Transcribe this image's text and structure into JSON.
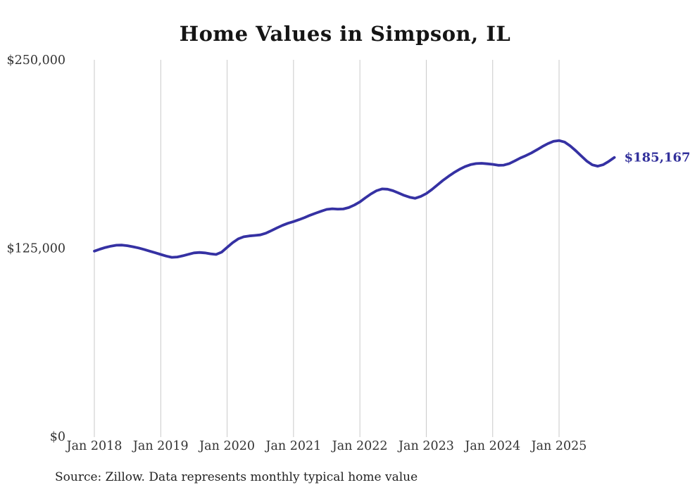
{
  "header": {
    "title": "Home Values in Simpson, IL"
  },
  "footer": {
    "source_note": "Source: Zillow. Data represents monthly typical home value"
  },
  "colors": {
    "line": "#3531a3",
    "grid": "#c9c9c9",
    "axis_text": "#333333",
    "title_text": "#151515",
    "end_label_text": "#32309b",
    "source_text": "#222222",
    "background": "#ffffff"
  },
  "chart_data": {
    "type": "line",
    "title": "Home Values in Simpson, IL",
    "xlabel": "",
    "ylabel": "",
    "ylim": [
      0,
      250000
    ],
    "grid": "vertical-only",
    "legend": "none",
    "y_ticks": [
      {
        "value": 0,
        "label": "$0"
      },
      {
        "value": 125000,
        "label": "$125,000"
      },
      {
        "value": 250000,
        "label": "$250,000"
      }
    ],
    "x_tick_labels": [
      "Jan 2018",
      "Jan 2019",
      "Jan 2020",
      "Jan 2021",
      "Jan 2022",
      "Jan 2023",
      "Jan 2024",
      "Jan 2025"
    ],
    "end_label": "$185,167",
    "series": [
      {
        "name": "Monthly typical home value",
        "frequency": "monthly",
        "x_start": "Jan 2018",
        "x_end": "Nov 2025",
        "values": [
          123000,
          124300,
          125400,
          126300,
          126900,
          127000,
          126600,
          125900,
          125100,
          124100,
          123000,
          121900,
          120800,
          119700,
          118900,
          119100,
          119900,
          120900,
          121800,
          122100,
          121800,
          121200,
          120800,
          122300,
          125500,
          128600,
          131100,
          132500,
          133100,
          133400,
          133800,
          134900,
          136600,
          138400,
          140100,
          141500,
          142600,
          143900,
          145300,
          146800,
          148200,
          149500,
          150700,
          151100,
          150900,
          151000,
          151900,
          153600,
          155700,
          158400,
          161000,
          163100,
          164300,
          164100,
          163100,
          161600,
          160000,
          158800,
          158100,
          159300,
          161200,
          163900,
          166900,
          169900,
          172600,
          175100,
          177300,
          179100,
          180400,
          181100,
          181300,
          181000,
          180600,
          180000,
          180100,
          181100,
          182900,
          184800,
          186400,
          188200,
          190300,
          192500,
          194400,
          195900,
          196400,
          195400,
          192900,
          189700,
          186200,
          182800,
          180300,
          179400,
          180400,
          182600,
          185167
        ]
      }
    ]
  }
}
